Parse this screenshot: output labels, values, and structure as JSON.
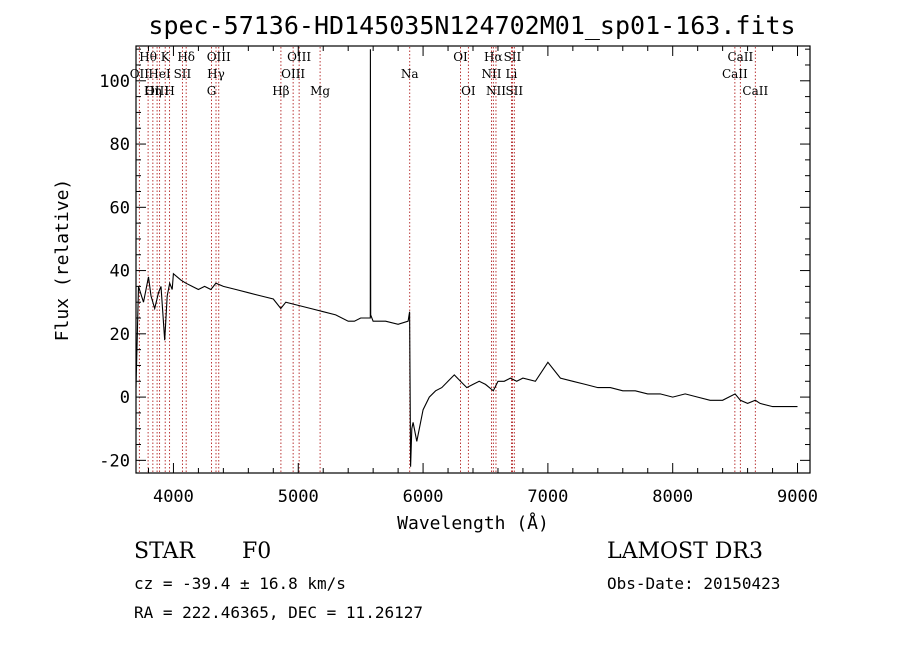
{
  "chart_data": {
    "type": "line",
    "title": "spec-57136-HD145035N124702M01_sp01-163.fits",
    "xlabel": "Wavelength (Å)",
    "ylabel": "Flux (relative)",
    "xlim": [
      3700,
      9100
    ],
    "ylim": [
      -24,
      111
    ],
    "xticks": [
      4000,
      5000,
      6000,
      7000,
      8000,
      9000
    ],
    "yticks": [
      -20,
      0,
      20,
      40,
      60,
      80,
      100
    ],
    "grid": false,
    "series": [
      {
        "x": [
          3700,
          3720,
          3760,
          3800,
          3820,
          3850,
          3880,
          3900,
          3930,
          3950,
          3970,
          3990,
          4000,
          4030,
          4060,
          4100,
          4150,
          4200,
          4250,
          4300,
          4340,
          4400,
          4500,
          4600,
          4700,
          4800,
          4860,
          4900,
          5000,
          5100,
          5200,
          5300,
          5400,
          5450,
          5500,
          5577,
          5578,
          5580,
          5600,
          5700,
          5800,
          5880,
          5892,
          5900,
          5910,
          5920,
          5950,
          6000,
          6050,
          6100,
          6150,
          6200,
          6250,
          6300,
          6350,
          6400,
          6450,
          6500,
          6563,
          6600,
          6650,
          6700,
          6750,
          6800,
          6900,
          7000,
          7100,
          7200,
          7300,
          7400,
          7500,
          7600,
          7700,
          7800,
          7900,
          8000,
          8100,
          8200,
          8300,
          8400,
          8500,
          8542,
          8600,
          8662,
          8700,
          8800,
          8900,
          9000
        ],
        "values": [
          3,
          35,
          30,
          38,
          32,
          28,
          33,
          35,
          18,
          32,
          36,
          34,
          39,
          38,
          37,
          36,
          35,
          34,
          35,
          34,
          36,
          35,
          34,
          33,
          32,
          31,
          28,
          30,
          29,
          28,
          27,
          26,
          24,
          24,
          25,
          25,
          110,
          26,
          24,
          24,
          23,
          24,
          27,
          -22,
          -10,
          -8,
          -14,
          -4,
          0,
          2,
          3,
          5,
          7,
          5,
          3,
          4,
          5,
          4,
          2,
          5,
          5,
          6,
          5,
          6,
          5,
          11,
          6,
          5,
          4,
          3,
          3,
          2,
          2,
          1,
          1,
          0,
          1,
          0,
          -1,
          -1,
          1,
          -1,
          -2,
          -1,
          -2,
          -3,
          -3,
          -3
        ]
      }
    ],
    "lines": [
      {
        "label": "Hθ",
        "wavelength": 3797,
        "row": 0
      },
      {
        "label": "OII",
        "wavelength": 3727,
        "row": 1
      },
      {
        "label": "OIII",
        "wavelength": 3869,
        "row": 2
      },
      {
        "label": "Hη",
        "wavelength": 3835,
        "row": 2
      },
      {
        "label": "HeI",
        "wavelength": 3889,
        "row": 1
      },
      {
        "label": "K",
        "wavelength": 3934,
        "row": 0
      },
      {
        "label": "H",
        "wavelength": 3969,
        "row": 2
      },
      {
        "label": "Hδ",
        "wavelength": 4102,
        "row": 0
      },
      {
        "label": "SII",
        "wavelength": 4072,
        "row": 1
      },
      {
        "label": "OIII",
        "wavelength": 4363,
        "row": 0
      },
      {
        "label": "Hγ",
        "wavelength": 4341,
        "row": 1
      },
      {
        "label": "G",
        "wavelength": 4305,
        "row": 2
      },
      {
        "label": "Hβ",
        "wavelength": 4861,
        "row": 2
      },
      {
        "label": "OIII",
        "wavelength": 5007,
        "row": 0
      },
      {
        "label": "OIII",
        "wavelength": 4959,
        "row": 1
      },
      {
        "label": "Mg",
        "wavelength": 5175,
        "row": 2
      },
      {
        "label": "Na",
        "wavelength": 5893,
        "row": 1
      },
      {
        "label": "OI",
        "wavelength": 6300,
        "row": 0
      },
      {
        "label": "OI",
        "wavelength": 6363,
        "row": 2
      },
      {
        "label": "Hα",
        "wavelength": 6563,
        "row": 0
      },
      {
        "label": "NII",
        "wavelength": 6548,
        "row": 1
      },
      {
        "label": "NII",
        "wavelength": 6584,
        "row": 2
      },
      {
        "label": "SII",
        "wavelength": 6716,
        "row": 0
      },
      {
        "label": "Li",
        "wavelength": 6708,
        "row": 1
      },
      {
        "label": "SII",
        "wavelength": 6731,
        "row": 2
      },
      {
        "label": "CaII",
        "wavelength": 8542,
        "row": 0
      },
      {
        "label": "CaII",
        "wavelength": 8498,
        "row": 1
      },
      {
        "label": "CaII",
        "wavelength": 8662,
        "row": 2
      }
    ]
  },
  "info": {
    "class": "STAR",
    "subclass": "F0",
    "survey": "LAMOST DR3",
    "redshift": "cz = -39.4 ± 16.8 km/s",
    "obs_date": "Obs-Date: 20150423",
    "coords": "RA = 222.46365, DEC =  11.26127"
  },
  "colors": {
    "spectrum": "#000000",
    "line_markers": "#b22222",
    "background": "#ffffff"
  }
}
